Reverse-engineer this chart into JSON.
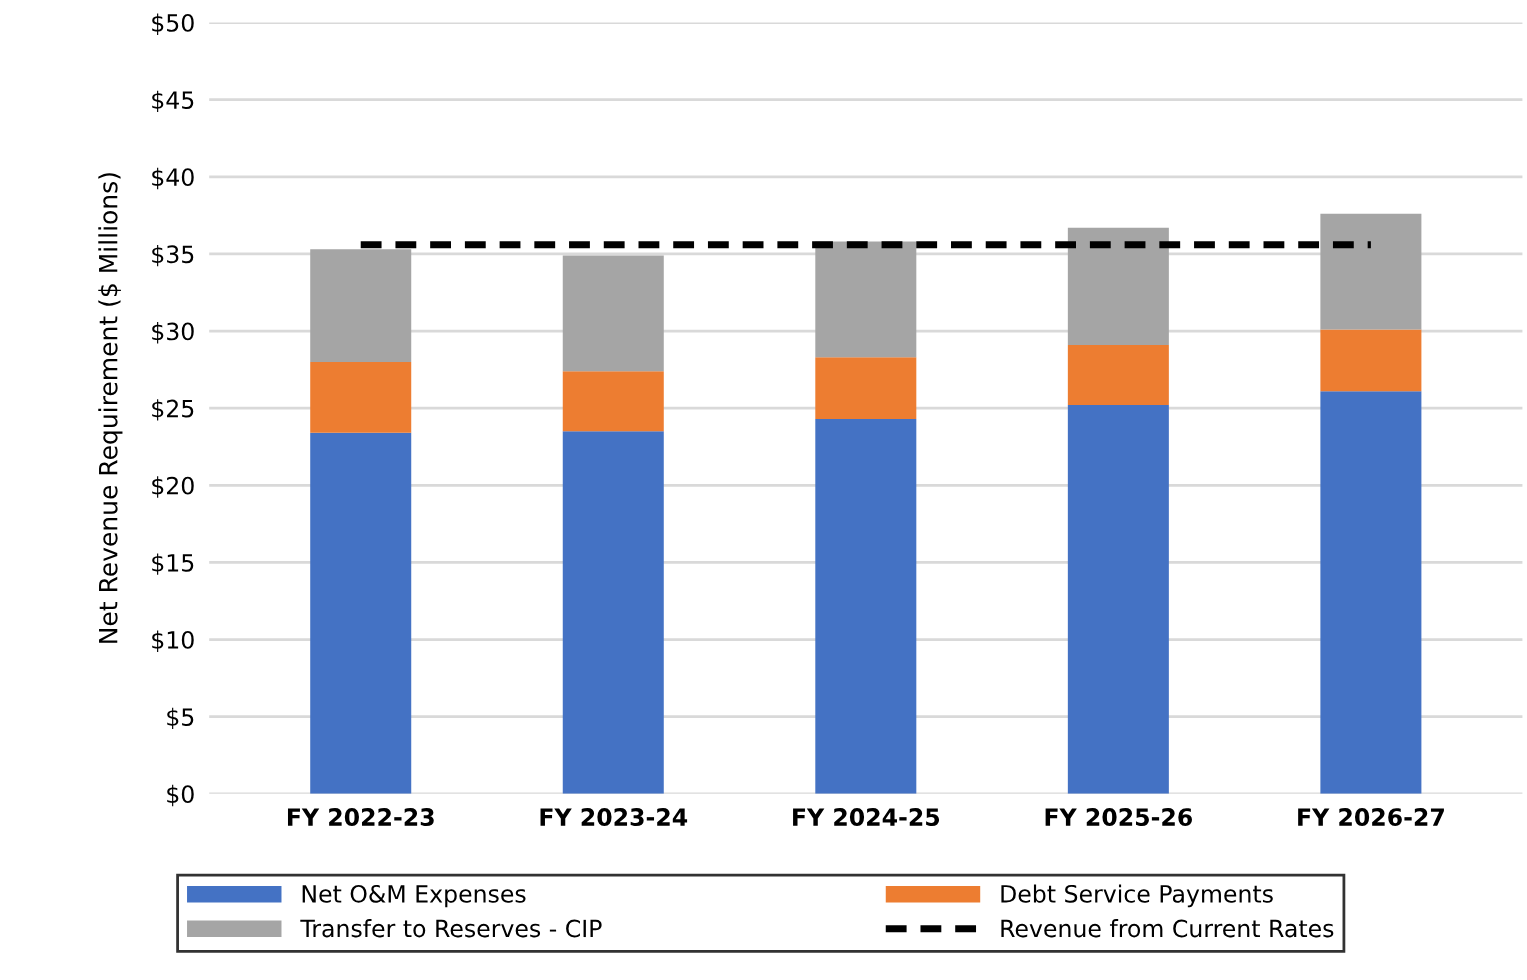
{
  "chart_data": {
    "type": "bar",
    "stacked": true,
    "ylabel": "Net Revenue Requirement ($ Millions)",
    "categories": [
      "FY 2022-23",
      "FY 2023-24",
      "FY 2024-25",
      "FY 2025-26",
      "FY 2026-27"
    ],
    "series": [
      {
        "name": "Net O&M Expenses",
        "color": "#4472c4",
        "values": [
          23.4,
          23.5,
          24.3,
          25.2,
          26.1
        ]
      },
      {
        "name": "Debt Service Payments",
        "color": "#ed7d31",
        "values": [
          4.6,
          3.9,
          4.0,
          3.9,
          4.0
        ]
      },
      {
        "name": "Transfer to Reserves - CIP",
        "color": "#a5a5a5",
        "values": [
          7.3,
          7.5,
          7.5,
          7.6,
          7.5
        ]
      },
      {
        "name": "Revenue from Current Rates",
        "color": "#000000",
        "type": "line",
        "line_style": "dashed",
        "values": [
          35.6,
          35.6,
          35.6,
          35.6,
          35.6
        ]
      }
    ],
    "ylim": [
      0,
      50
    ],
    "yticks": [
      {
        "value": 0,
        "label": "$0"
      },
      {
        "value": 5,
        "label": "$5"
      },
      {
        "value": 10,
        "label": "$10"
      },
      {
        "value": 15,
        "label": "$15"
      },
      {
        "value": 20,
        "label": "$20"
      },
      {
        "value": 25,
        "label": "$25"
      },
      {
        "value": 30,
        "label": "$30"
      },
      {
        "value": 35,
        "label": "$35"
      },
      {
        "value": 40,
        "label": "$40"
      },
      {
        "value": 45,
        "label": "$45"
      },
      {
        "value": 50,
        "label": "$50"
      }
    ],
    "grid": "y",
    "legend": "bottom"
  }
}
